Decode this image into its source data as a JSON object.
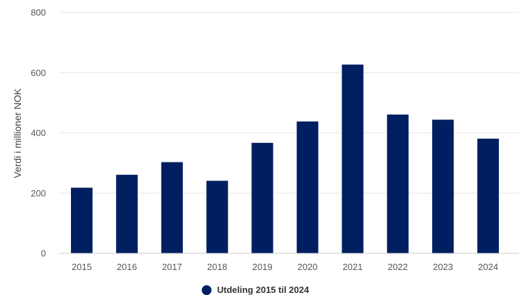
{
  "chart_data": {
    "type": "bar",
    "categories": [
      "2015",
      "2016",
      "2017",
      "2018",
      "2019",
      "2020",
      "2021",
      "2022",
      "2023",
      "2024"
    ],
    "series": [
      {
        "name": "Utdeling 2015 til 2024",
        "values": [
          218,
          261,
          303,
          241,
          367,
          438,
          627,
          461,
          444,
          381
        ]
      }
    ],
    "ylabel": "Verdi i millioner NOK",
    "ylim": [
      0,
      800
    ],
    "yticks": [
      0,
      200,
      400,
      600,
      800
    ],
    "grid": true,
    "legend_position": "bottom",
    "colors": {
      "bar": "#001f60",
      "grid": "#e6e6e6",
      "axis": "#cccccc"
    }
  }
}
